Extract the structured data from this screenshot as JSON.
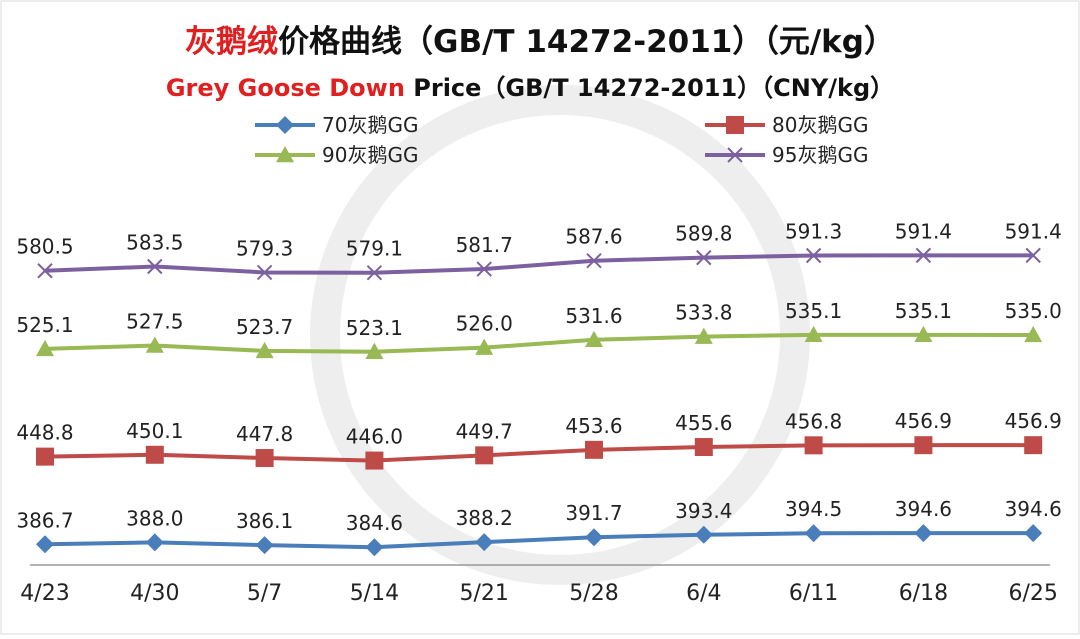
{
  "chart_data": {
    "type": "line",
    "title": {
      "highlight": "灰鹅绒",
      "rest": "价格曲线（GB/T 14272-2011）（元/kg）"
    },
    "subtitle": {
      "highlight": "Grey Goose Down",
      "rest": " Price（GB/T 14272-2011）（CNY/kg）"
    },
    "categories": [
      "4/23",
      "4/30",
      "5/7",
      "5/14",
      "5/21",
      "5/28",
      "6/4",
      "6/11",
      "6/18",
      "6/25"
    ],
    "ylim": [
      372,
      620
    ],
    "series": [
      {
        "name": "70灰鹅GG",
        "color": "#4a7ebb",
        "marker": "diamond",
        "values": [
          386.7,
          388.0,
          386.1,
          384.6,
          388.2,
          391.7,
          393.4,
          394.5,
          394.6,
          394.6
        ],
        "value_labels": [
          "386.7",
          "388.0",
          "386.1",
          "384.6",
          "388.2",
          "391.7",
          "393.4",
          "394.5",
          "394.6",
          "394.6"
        ]
      },
      {
        "name": "80灰鹅GG",
        "color": "#be4b48",
        "marker": "square",
        "values": [
          448.8,
          450.1,
          447.8,
          446.0,
          449.7,
          453.6,
          455.6,
          456.8,
          456.9,
          456.9
        ],
        "value_labels": [
          "448.8",
          "450.1",
          "447.8",
          "446.0",
          "449.7",
          "453.6",
          "455.6",
          "456.8",
          "456.9",
          "456.9"
        ]
      },
      {
        "name": "90灰鹅GG",
        "color": "#98b954",
        "marker": "triangle",
        "values": [
          525.1,
          527.5,
          523.7,
          523.1,
          526.0,
          531.6,
          533.8,
          535.1,
          535.1,
          535.0
        ],
        "value_labels": [
          "525.1",
          "527.5",
          "523.7",
          "523.1",
          "526.0",
          "531.6",
          "533.8",
          "535.1",
          "535.1",
          "535.0"
        ]
      },
      {
        "name": "95灰鹅GG",
        "color": "#7d60a0",
        "marker": "x",
        "values": [
          580.5,
          583.5,
          579.3,
          579.1,
          581.7,
          587.6,
          589.8,
          591.3,
          591.4,
          591.4
        ],
        "value_labels": [
          "580.5",
          "583.5",
          "579.3",
          "579.1",
          "581.7",
          "587.6",
          "589.8",
          "591.3",
          "591.4",
          "591.4"
        ]
      }
    ]
  }
}
